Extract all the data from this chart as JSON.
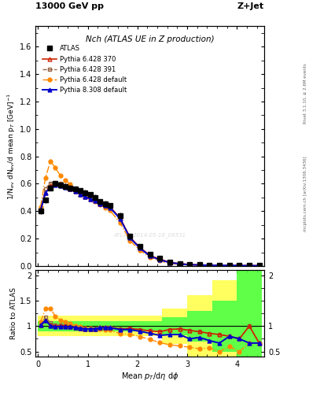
{
  "title_top": "13000 GeV pp",
  "title_right": "Z+Jet",
  "plot_title": "Nch (ATLAS UE in Z production)",
  "ylabel_main": "1/N$_{ev}$ dN$_{ev}$/d mean p$_T$ [GeV]$^{-1}$",
  "ylabel_ratio": "Ratio to ATLAS",
  "xlabel": "Mean $p_T$/d$\\eta$ d$\\phi$",
  "right_label": "mcplots.cern.ch [arXiv:1306.3436]",
  "right_label2": "Rivet 3.1.10, ≥ 2.6M events",
  "watermark": "ATLAS_2014-05-16_06531",
  "atlas_x": [
    0.05,
    0.15,
    0.25,
    0.35,
    0.45,
    0.55,
    0.65,
    0.75,
    0.85,
    0.95,
    1.05,
    1.15,
    1.25,
    1.35,
    1.45,
    1.65,
    1.85,
    2.05,
    2.25,
    2.45,
    2.65,
    2.85,
    3.05,
    3.25,
    3.45,
    3.65,
    3.85,
    4.05,
    4.25,
    4.45
  ],
  "atlas_y": [
    0.4,
    0.48,
    0.57,
    0.6,
    0.59,
    0.58,
    0.57,
    0.56,
    0.55,
    0.535,
    0.52,
    0.5,
    0.47,
    0.455,
    0.44,
    0.37,
    0.22,
    0.145,
    0.085,
    0.055,
    0.03,
    0.018,
    0.012,
    0.009,
    0.007,
    0.006,
    0.005,
    0.004,
    0.003,
    0.003
  ],
  "atlas_yerr": [
    0.02,
    0.02,
    0.02,
    0.02,
    0.02,
    0.02,
    0.02,
    0.02,
    0.02,
    0.02,
    0.02,
    0.02,
    0.02,
    0.02,
    0.02,
    0.02,
    0.015,
    0.012,
    0.008,
    0.005,
    0.003,
    0.002,
    0.001,
    0.001,
    0.001,
    0.001,
    0.001,
    0.001,
    0.001,
    0.001
  ],
  "py6_370_x": [
    0.05,
    0.15,
    0.25,
    0.35,
    0.45,
    0.55,
    0.65,
    0.75,
    0.85,
    0.95,
    1.05,
    1.15,
    1.25,
    1.35,
    1.45,
    1.65,
    1.85,
    2.05,
    2.25,
    2.45,
    2.65,
    2.85,
    3.05,
    3.25,
    3.45,
    3.65,
    3.85,
    4.05,
    4.25,
    4.45
  ],
  "py6_370_y": [
    0.405,
    0.535,
    0.585,
    0.6,
    0.595,
    0.585,
    0.565,
    0.545,
    0.525,
    0.505,
    0.49,
    0.475,
    0.455,
    0.44,
    0.43,
    0.35,
    0.21,
    0.135,
    0.077,
    0.049,
    0.028,
    0.017,
    0.011,
    0.008,
    0.006,
    0.005,
    0.004,
    0.003,
    0.003,
    0.002
  ],
  "py6_391_x": [
    0.05,
    0.15,
    0.25,
    0.35,
    0.45,
    0.55,
    0.65,
    0.75,
    0.85,
    0.95,
    1.05,
    1.15,
    1.25,
    1.35,
    1.45,
    1.65,
    1.85,
    2.05,
    2.25,
    2.45,
    2.65,
    2.85,
    3.05,
    3.25,
    3.45,
    3.65,
    3.85,
    4.05,
    4.25,
    4.45
  ],
  "py6_391_y": [
    0.405,
    0.565,
    0.605,
    0.61,
    0.6,
    0.585,
    0.565,
    0.545,
    0.525,
    0.505,
    0.49,
    0.475,
    0.455,
    0.44,
    0.43,
    0.35,
    0.21,
    0.135,
    0.077,
    0.049,
    0.028,
    0.017,
    0.011,
    0.008,
    0.006,
    0.005,
    0.004,
    0.003,
    0.003,
    0.002
  ],
  "py6_def_x": [
    0.05,
    0.15,
    0.25,
    0.35,
    0.45,
    0.55,
    0.65,
    0.75,
    0.85,
    0.95,
    1.05,
    1.15,
    1.25,
    1.35,
    1.45,
    1.65,
    1.85,
    2.05,
    2.25,
    2.45,
    2.65,
    2.85,
    3.05,
    3.25,
    3.45,
    3.65,
    3.85,
    4.05,
    4.25,
    4.45
  ],
  "py6_def_y": [
    0.43,
    0.645,
    0.765,
    0.715,
    0.66,
    0.625,
    0.595,
    0.565,
    0.54,
    0.515,
    0.495,
    0.47,
    0.445,
    0.425,
    0.405,
    0.315,
    0.185,
    0.115,
    0.063,
    0.037,
    0.019,
    0.011,
    0.007,
    0.005,
    0.004,
    0.003,
    0.003,
    0.002,
    0.002,
    0.002
  ],
  "py8_def_x": [
    0.05,
    0.15,
    0.25,
    0.35,
    0.45,
    0.55,
    0.65,
    0.75,
    0.85,
    0.95,
    1.05,
    1.15,
    1.25,
    1.35,
    1.45,
    1.65,
    1.85,
    2.05,
    2.25,
    2.45,
    2.65,
    2.85,
    3.05,
    3.25,
    3.45,
    3.65,
    3.85,
    4.05,
    4.25,
    4.45
  ],
  "py8_def_y": [
    0.405,
    0.535,
    0.575,
    0.59,
    0.585,
    0.575,
    0.56,
    0.545,
    0.525,
    0.505,
    0.49,
    0.475,
    0.455,
    0.44,
    0.425,
    0.345,
    0.205,
    0.13,
    0.073,
    0.045,
    0.025,
    0.015,
    0.009,
    0.007,
    0.005,
    0.004,
    0.004,
    0.003,
    0.002,
    0.002
  ],
  "xlim": [
    -0.05,
    4.55
  ],
  "ylim_main": [
    0.0,
    1.75
  ],
  "ylim_ratio": [
    0.4,
    2.1
  ],
  "yticks_main": [
    0.0,
    0.2,
    0.4,
    0.6,
    0.8,
    1.0,
    1.2,
    1.4,
    1.6
  ],
  "yticks_ratio": [
    0.5,
    1.0,
    1.5,
    2.0
  ],
  "color_atlas": "#000000",
  "color_py6_370": "#cc2200",
  "color_py6_391": "#996644",
  "color_py6_def": "#ff8800",
  "color_py8_def": "#0000cc",
  "band_yellow": "#ffff44",
  "band_green": "#44ff44",
  "legend_labels": [
    "ATLAS",
    "Pythia 6.428 370",
    "Pythia 6.428 391",
    "Pythia 6.428 default",
    "Pythia 8.308 default"
  ],
  "band_x_edges": [
    0.0,
    0.5,
    1.0,
    1.5,
    2.0,
    2.5,
    3.0,
    3.5,
    4.0,
    4.5
  ],
  "band_yellow_hi": [
    1.2,
    1.2,
    1.2,
    1.2,
    1.2,
    1.35,
    1.6,
    1.9,
    2.1,
    2.1
  ],
  "band_yellow_lo": [
    0.8,
    0.8,
    0.8,
    0.8,
    0.8,
    0.65,
    0.4,
    0.4,
    0.4,
    0.4
  ],
  "band_green_hi": [
    1.1,
    1.1,
    1.1,
    1.1,
    1.1,
    1.18,
    1.3,
    1.5,
    2.1,
    2.1
  ],
  "band_green_lo": [
    0.9,
    0.9,
    0.9,
    0.9,
    0.9,
    0.82,
    0.7,
    0.5,
    0.4,
    0.4
  ]
}
